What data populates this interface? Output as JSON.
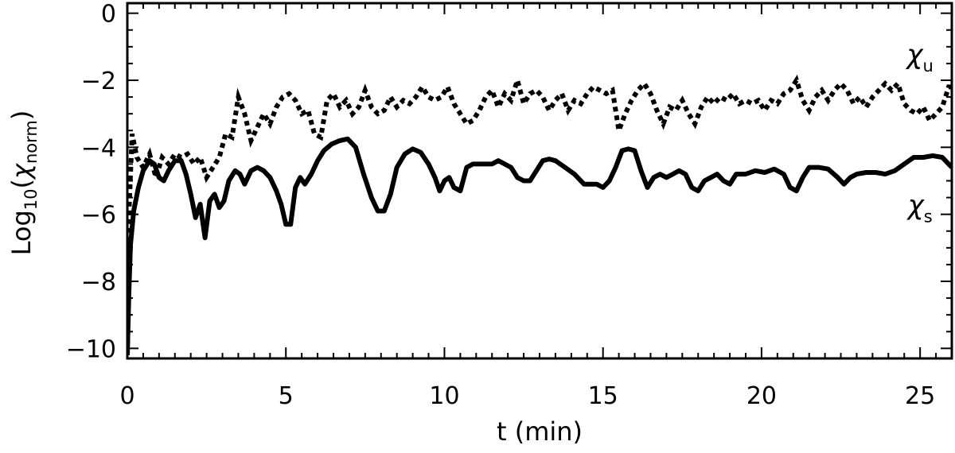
{
  "chart_data": {
    "type": "line",
    "xlabel": "t  (min)",
    "ylabel": {
      "base": "Log",
      "base_sub": "10",
      "open": "(",
      "symbol": "χ",
      "symbol_sub": "norm",
      "close": ")"
    },
    "xlim": [
      0,
      26
    ],
    "ylim": [
      -10.3,
      0.3
    ],
    "x_ticks": [
      0,
      5,
      10,
      15,
      20,
      25
    ],
    "x_tick_labels": [
      "0",
      "5",
      "10",
      "15",
      "20",
      "25"
    ],
    "y_ticks": [
      -10,
      -8,
      -6,
      -4,
      -2,
      0
    ],
    "y_tick_labels": [
      "−10",
      "−8",
      "−6",
      "−4",
      "−2",
      "0"
    ],
    "grid": false,
    "legend": "none",
    "series": [
      {
        "symbol": "χ",
        "subscript": "u",
        "style": "dotted",
        "points": [
          [
            0.0,
            -10.2
          ],
          [
            0.05,
            -6.0
          ],
          [
            0.15,
            -3.6
          ],
          [
            0.3,
            -4.3
          ],
          [
            0.5,
            -4.6
          ],
          [
            0.7,
            -4.2
          ],
          [
            0.9,
            -4.9
          ],
          [
            1.1,
            -4.3
          ],
          [
            1.3,
            -4.5
          ],
          [
            1.5,
            -4.2
          ],
          [
            1.7,
            -4.3
          ],
          [
            1.9,
            -4.2
          ],
          [
            2.1,
            -4.5
          ],
          [
            2.3,
            -4.3
          ],
          [
            2.5,
            -4.9
          ],
          [
            2.7,
            -4.6
          ],
          [
            2.9,
            -4.3
          ],
          [
            3.1,
            -3.6
          ],
          [
            3.3,
            -3.7
          ],
          [
            3.5,
            -2.5
          ],
          [
            3.7,
            -3.0
          ],
          [
            3.9,
            -3.8
          ],
          [
            4.1,
            -3.4
          ],
          [
            4.3,
            -3.0
          ],
          [
            4.5,
            -3.3
          ],
          [
            4.7,
            -2.8
          ],
          [
            4.9,
            -2.5
          ],
          [
            5.1,
            -2.4
          ],
          [
            5.3,
            -2.6
          ],
          [
            5.5,
            -3.0
          ],
          [
            5.7,
            -2.9
          ],
          [
            5.9,
            -3.6
          ],
          [
            6.1,
            -3.7
          ],
          [
            6.3,
            -2.6
          ],
          [
            6.5,
            -2.4
          ],
          [
            6.7,
            -2.8
          ],
          [
            6.9,
            -2.6
          ],
          [
            7.1,
            -3.0
          ],
          [
            7.3,
            -2.8
          ],
          [
            7.5,
            -2.3
          ],
          [
            7.7,
            -2.8
          ],
          [
            7.9,
            -3.0
          ],
          [
            8.1,
            -2.9
          ],
          [
            8.3,
            -2.5
          ],
          [
            8.5,
            -2.8
          ],
          [
            8.7,
            -2.6
          ],
          [
            8.9,
            -2.7
          ],
          [
            9.1,
            -2.5
          ],
          [
            9.3,
            -2.2
          ],
          [
            9.5,
            -2.5
          ],
          [
            9.7,
            -2.6
          ],
          [
            9.9,
            -2.5
          ],
          [
            10.1,
            -2.2
          ],
          [
            10.3,
            -2.7
          ],
          [
            10.5,
            -3.0
          ],
          [
            10.7,
            -3.3
          ],
          [
            10.9,
            -3.2
          ],
          [
            11.1,
            -2.9
          ],
          [
            11.3,
            -2.5
          ],
          [
            11.5,
            -2.3
          ],
          [
            11.7,
            -2.8
          ],
          [
            11.9,
            -2.4
          ],
          [
            12.1,
            -2.6
          ],
          [
            12.3,
            -2.0
          ],
          [
            12.5,
            -2.7
          ],
          [
            12.7,
            -2.4
          ],
          [
            12.9,
            -2.3
          ],
          [
            13.1,
            -2.5
          ],
          [
            13.3,
            -2.9
          ],
          [
            13.5,
            -2.6
          ],
          [
            13.7,
            -2.4
          ],
          [
            13.9,
            -2.9
          ],
          [
            14.1,
            -2.6
          ],
          [
            14.3,
            -2.7
          ],
          [
            14.5,
            -2.4
          ],
          [
            14.7,
            -2.2
          ],
          [
            14.9,
            -2.3
          ],
          [
            15.1,
            -2.4
          ],
          [
            15.3,
            -2.3
          ],
          [
            15.5,
            -3.5
          ],
          [
            15.7,
            -3.0
          ],
          [
            15.9,
            -2.6
          ],
          [
            16.1,
            -2.3
          ],
          [
            16.3,
            -2.1
          ],
          [
            16.5,
            -2.4
          ],
          [
            16.7,
            -2.9
          ],
          [
            16.9,
            -3.3
          ],
          [
            17.1,
            -2.8
          ],
          [
            17.3,
            -2.9
          ],
          [
            17.5,
            -2.6
          ],
          [
            17.7,
            -3.0
          ],
          [
            17.9,
            -3.3
          ],
          [
            18.1,
            -2.8
          ],
          [
            18.3,
            -2.5
          ],
          [
            18.5,
            -2.7
          ],
          [
            18.7,
            -2.5
          ],
          [
            18.9,
            -2.6
          ],
          [
            19.1,
            -2.4
          ],
          [
            19.3,
            -2.7
          ],
          [
            19.5,
            -2.6
          ],
          [
            19.7,
            -2.7
          ],
          [
            19.9,
            -2.6
          ],
          [
            20.1,
            -2.9
          ],
          [
            20.3,
            -2.6
          ],
          [
            20.5,
            -2.7
          ],
          [
            20.7,
            -2.4
          ],
          [
            20.9,
            -2.3
          ],
          [
            21.1,
            -2.0
          ],
          [
            21.3,
            -2.6
          ],
          [
            21.5,
            -2.9
          ],
          [
            21.7,
            -2.5
          ],
          [
            21.9,
            -2.3
          ],
          [
            22.1,
            -2.6
          ],
          [
            22.3,
            -2.3
          ],
          [
            22.5,
            -2.1
          ],
          [
            22.7,
            -2.3
          ],
          [
            22.9,
            -2.7
          ],
          [
            23.1,
            -2.5
          ],
          [
            23.3,
            -2.8
          ],
          [
            23.5,
            -2.5
          ],
          [
            23.7,
            -2.3
          ],
          [
            23.9,
            -2.1
          ],
          [
            24.1,
            -2.3
          ],
          [
            24.3,
            -2.1
          ],
          [
            24.5,
            -2.7
          ],
          [
            24.7,
            -2.9
          ],
          [
            24.9,
            -3.0
          ],
          [
            25.1,
            -2.8
          ],
          [
            25.3,
            -3.2
          ],
          [
            25.5,
            -3.0
          ],
          [
            25.7,
            -2.8
          ],
          [
            25.9,
            -2.2
          ],
          [
            26.0,
            -2.2
          ]
        ]
      },
      {
        "symbol": "χ",
        "subscript": "s",
        "style": "solid",
        "points": [
          [
            0.0,
            -10.2
          ],
          [
            0.05,
            -8.3
          ],
          [
            0.1,
            -6.9
          ],
          [
            0.2,
            -5.9
          ],
          [
            0.35,
            -5.2
          ],
          [
            0.5,
            -4.7
          ],
          [
            0.7,
            -4.4
          ],
          [
            0.85,
            -4.5
          ],
          [
            1.0,
            -4.9
          ],
          [
            1.15,
            -5.0
          ],
          [
            1.3,
            -4.7
          ],
          [
            1.5,
            -4.4
          ],
          [
            1.7,
            -4.4
          ],
          [
            1.85,
            -4.8
          ],
          [
            2.0,
            -5.4
          ],
          [
            2.15,
            -6.1
          ],
          [
            2.3,
            -5.7
          ],
          [
            2.45,
            -6.7
          ],
          [
            2.6,
            -5.6
          ],
          [
            2.75,
            -5.4
          ],
          [
            2.9,
            -5.8
          ],
          [
            3.05,
            -5.6
          ],
          [
            3.2,
            -5.0
          ],
          [
            3.4,
            -4.7
          ],
          [
            3.55,
            -4.8
          ],
          [
            3.7,
            -5.1
          ],
          [
            3.9,
            -4.7
          ],
          [
            4.1,
            -4.6
          ],
          [
            4.3,
            -4.7
          ],
          [
            4.5,
            -4.9
          ],
          [
            4.7,
            -5.3
          ],
          [
            4.85,
            -5.7
          ],
          [
            5.0,
            -6.3
          ],
          [
            5.15,
            -6.3
          ],
          [
            5.3,
            -5.2
          ],
          [
            5.45,
            -4.9
          ],
          [
            5.6,
            -5.1
          ],
          [
            5.8,
            -4.8
          ],
          [
            6.0,
            -4.4
          ],
          [
            6.2,
            -4.1
          ],
          [
            6.45,
            -3.9
          ],
          [
            6.7,
            -3.8
          ],
          [
            6.95,
            -3.75
          ],
          [
            7.2,
            -4.0
          ],
          [
            7.45,
            -4.8
          ],
          [
            7.7,
            -5.5
          ],
          [
            7.9,
            -5.9
          ],
          [
            8.1,
            -5.9
          ],
          [
            8.3,
            -5.4
          ],
          [
            8.5,
            -4.6
          ],
          [
            8.75,
            -4.2
          ],
          [
            9.0,
            -4.05
          ],
          [
            9.25,
            -4.15
          ],
          [
            9.5,
            -4.5
          ],
          [
            9.7,
            -4.9
          ],
          [
            9.85,
            -5.3
          ],
          [
            10.0,
            -5.0
          ],
          [
            10.15,
            -4.9
          ],
          [
            10.3,
            -5.2
          ],
          [
            10.5,
            -5.3
          ],
          [
            10.7,
            -4.6
          ],
          [
            10.9,
            -4.5
          ],
          [
            11.1,
            -4.5
          ],
          [
            11.3,
            -4.5
          ],
          [
            11.5,
            -4.5
          ],
          [
            11.7,
            -4.4
          ],
          [
            11.9,
            -4.5
          ],
          [
            12.1,
            -4.6
          ],
          [
            12.3,
            -4.9
          ],
          [
            12.5,
            -5.0
          ],
          [
            12.7,
            -5.0
          ],
          [
            12.9,
            -4.7
          ],
          [
            13.1,
            -4.4
          ],
          [
            13.3,
            -4.35
          ],
          [
            13.5,
            -4.4
          ],
          [
            13.8,
            -4.6
          ],
          [
            14.1,
            -4.8
          ],
          [
            14.4,
            -5.1
          ],
          [
            14.6,
            -5.1
          ],
          [
            14.8,
            -5.1
          ],
          [
            15.0,
            -5.2
          ],
          [
            15.2,
            -5.0
          ],
          [
            15.4,
            -4.6
          ],
          [
            15.6,
            -4.1
          ],
          [
            15.8,
            -4.05
          ],
          [
            16.0,
            -4.1
          ],
          [
            16.2,
            -4.7
          ],
          [
            16.4,
            -5.2
          ],
          [
            16.6,
            -4.9
          ],
          [
            16.8,
            -4.8
          ],
          [
            17.0,
            -4.9
          ],
          [
            17.2,
            -4.8
          ],
          [
            17.4,
            -4.7
          ],
          [
            17.6,
            -4.8
          ],
          [
            17.8,
            -5.2
          ],
          [
            18.0,
            -5.3
          ],
          [
            18.2,
            -5.0
          ],
          [
            18.4,
            -4.9
          ],
          [
            18.6,
            -4.8
          ],
          [
            18.8,
            -5.0
          ],
          [
            19.0,
            -5.1
          ],
          [
            19.2,
            -4.8
          ],
          [
            19.5,
            -4.8
          ],
          [
            19.8,
            -4.7
          ],
          [
            20.1,
            -4.75
          ],
          [
            20.4,
            -4.65
          ],
          [
            20.7,
            -4.8
          ],
          [
            20.9,
            -5.2
          ],
          [
            21.1,
            -5.3
          ],
          [
            21.3,
            -4.9
          ],
          [
            21.5,
            -4.6
          ],
          [
            21.8,
            -4.6
          ],
          [
            22.1,
            -4.65
          ],
          [
            22.4,
            -4.9
          ],
          [
            22.6,
            -5.1
          ],
          [
            22.8,
            -4.9
          ],
          [
            23.0,
            -4.8
          ],
          [
            23.3,
            -4.75
          ],
          [
            23.6,
            -4.75
          ],
          [
            23.9,
            -4.8
          ],
          [
            24.2,
            -4.7
          ],
          [
            24.5,
            -4.5
          ],
          [
            24.8,
            -4.3
          ],
          [
            25.1,
            -4.3
          ],
          [
            25.4,
            -4.25
          ],
          [
            25.7,
            -4.3
          ],
          [
            25.9,
            -4.5
          ],
          [
            26.0,
            -4.6
          ]
        ]
      }
    ],
    "annotations": [
      {
        "symbol": "χ",
        "subscript": "u",
        "x": 25.0,
        "y": -1.5,
        "series_index": 0
      },
      {
        "symbol": "χ",
        "subscript": "s",
        "x": 25.0,
        "y": -6.0,
        "series_index": 1
      }
    ]
  }
}
